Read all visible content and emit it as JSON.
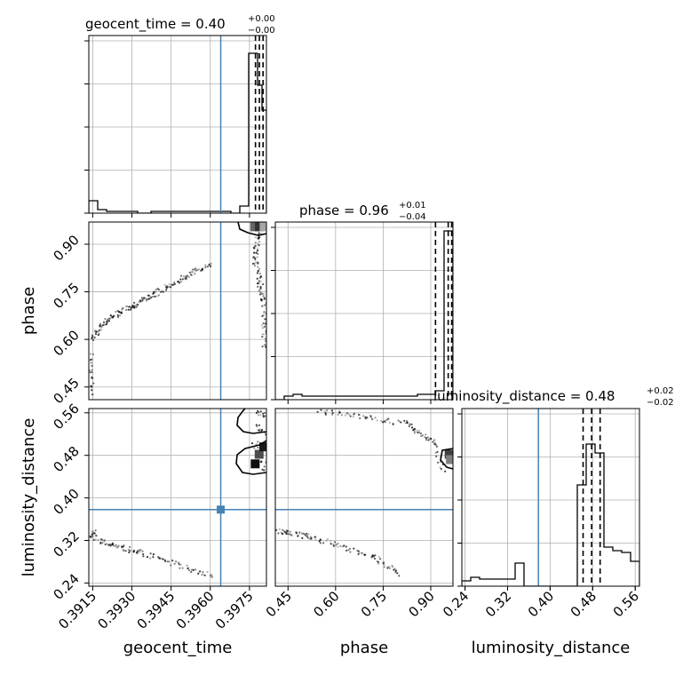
{
  "chart_data": {
    "type": "corner",
    "truth_color": "#4682b4",
    "params": [
      {
        "name": "geocent_time",
        "axis_label": "geocent_time",
        "range": [
          0.39135,
          0.39815
        ],
        "ticks": [
          "0.3915",
          "0.3930",
          "0.3945",
          "0.3960",
          "0.3975"
        ],
        "tick_values": [
          0.3915,
          0.393,
          0.3945,
          0.396,
          0.3975
        ],
        "truth": 0.3964,
        "title": "geocent_time = 0.40",
        "title_plus": "+0.00",
        "title_minus": "−0.00",
        "quantiles": [
          0.39773,
          0.39788,
          0.39802
        ]
      },
      {
        "name": "phase",
        "axis_label": "phase",
        "range": [
          0.41,
          0.97
        ],
        "ticks": [
          "0.45",
          "0.60",
          "0.75",
          "0.90"
        ],
        "tick_values": [
          0.45,
          0.6,
          0.75,
          0.9
        ],
        "truth": null,
        "title": "phase = 0.96",
        "title_plus": "+0.01",
        "title_minus": "−0.04",
        "quantiles": [
          0.915,
          0.955,
          0.966
        ]
      },
      {
        "name": "luminosity_distance",
        "axis_label": "luminosity_distance",
        "range": [
          0.234,
          0.568
        ],
        "ticks": [
          "0.24",
          "0.32",
          "0.40",
          "0.48",
          "0.56"
        ],
        "tick_values": [
          0.24,
          0.32,
          0.4,
          0.48,
          0.56
        ],
        "truth": 0.378,
        "title": "luminosity_distance = 0.48",
        "title_plus": "+0.02",
        "title_minus": "−0.02",
        "quantiles": [
          0.462,
          0.478,
          0.494
        ]
      }
    ],
    "histograms": {
      "geocent_time": {
        "edges": [
          0.39135,
          0.39152,
          0.39169,
          0.39186,
          0.39203,
          0.3922,
          0.39237,
          0.39254,
          0.39271,
          0.39288,
          0.39305,
          0.39322,
          0.39339,
          0.39356,
          0.39373,
          0.3939,
          0.39407,
          0.39424,
          0.39441,
          0.39458,
          0.39475,
          0.39492,
          0.39509,
          0.39526,
          0.39543,
          0.3956,
          0.39577,
          0.39594,
          0.39611,
          0.39628,
          0.39645,
          0.39662,
          0.39679,
          0.39696,
          0.39713,
          0.3973,
          0.39747,
          0.39764,
          0.39781,
          0.39798,
          0.39815
        ],
        "counts": [
          0.07,
          0.07,
          0.02,
          0.02,
          0.01,
          0.01,
          0.01,
          0.01,
          0.01,
          0.01,
          0.01,
          0.0,
          0.0,
          0.0,
          0.01,
          0.01,
          0.01,
          0.01,
          0.01,
          0.01,
          0.01,
          0.01,
          0.01,
          0.01,
          0.01,
          0.01,
          0.01,
          0.01,
          0.01,
          0.01,
          0.01,
          0.01,
          0.0,
          0.0,
          0.04,
          0.04,
          0.9,
          0.9,
          0.72,
          0.58
        ]
      },
      "phase": {
        "edges": [
          0.41,
          0.438,
          0.466,
          0.494,
          0.522,
          0.55,
          0.578,
          0.606,
          0.634,
          0.662,
          0.69,
          0.718,
          0.746,
          0.774,
          0.802,
          0.83,
          0.858,
          0.886,
          0.914,
          0.942,
          0.97
        ],
        "counts": [
          0.0,
          0.02,
          0.03,
          0.02,
          0.02,
          0.02,
          0.02,
          0.02,
          0.02,
          0.02,
          0.02,
          0.02,
          0.02,
          0.02,
          0.02,
          0.02,
          0.03,
          0.03,
          0.05,
          0.95
        ]
      },
      "luminosity_distance": {
        "edges": [
          0.234,
          0.2507,
          0.2674,
          0.2841,
          0.3008,
          0.3175,
          0.3342,
          0.3509,
          0.3676,
          0.3843,
          0.401,
          0.4177,
          0.4344,
          0.4511,
          0.4678,
          0.4845,
          0.5012,
          0.5179,
          0.5346,
          0.5513,
          0.568
        ],
        "counts": [
          0.03,
          0.05,
          0.04,
          0.04,
          0.04,
          0.04,
          0.13,
          0.0,
          0.0,
          0.0,
          0.0,
          0.0,
          0.0,
          0.57,
          0.8,
          0.75,
          0.22,
          0.2,
          0.19,
          0.14
        ]
      }
    },
    "scatter_bands": [
      {
        "panel": "phase_vs_geocent_time",
        "series": [
          {
            "start": [
              0.39138,
              0.52
            ],
            "end": [
              0.39148,
              0.43
            ],
            "count": 14
          },
          {
            "start": [
              0.3914,
              0.56
            ],
            "end": [
              0.39152,
              0.51
            ],
            "count": 8
          },
          {
            "start": [
              0.39145,
              0.6
            ],
            "end": [
              0.392,
              0.66
            ],
            "count": 30
          },
          {
            "start": [
              0.392,
              0.66
            ],
            "end": [
              0.3938,
              0.74
            ],
            "count": 70
          },
          {
            "start": [
              0.3938,
              0.74
            ],
            "end": [
              0.396,
              0.84
            ],
            "count": 70
          },
          {
            "start": [
              0.3979,
              0.96
            ],
            "end": [
              0.3979,
              0.93
            ],
            "count": 10
          },
          {
            "start": [
              0.39785,
              0.93
            ],
            "end": [
              0.3977,
              0.86
            ],
            "count": 25
          },
          {
            "start": [
              0.3977,
              0.86
            ],
            "end": [
              0.39805,
              0.72
            ],
            "count": 40
          },
          {
            "start": [
              0.39805,
              0.72
            ],
            "end": [
              0.3981,
              0.57
            ],
            "count": 35
          }
        ]
      },
      {
        "panel": "luminosity_distance_vs_geocent_time",
        "series": [
          {
            "start": [
              0.39136,
              0.325
            ],
            "end": [
              0.3916,
              0.335
            ],
            "count": 15
          },
          {
            "start": [
              0.3916,
              0.32
            ],
            "end": [
              0.3933,
              0.298
            ],
            "count": 45
          },
          {
            "start": [
              0.3933,
              0.298
            ],
            "end": [
              0.3961,
              0.252
            ],
            "count": 50
          },
          {
            "start": [
              0.39775,
              0.56
            ],
            "end": [
              0.3981,
              0.555
            ],
            "count": 12
          },
          {
            "start": [
              0.39775,
              0.535
            ],
            "end": [
              0.3981,
              0.52
            ],
            "count": 12
          },
          {
            "start": [
              0.3977,
              0.505
            ],
            "end": [
              0.3981,
              0.455
            ],
            "count": 20
          }
        ]
      },
      {
        "panel": "luminosity_distance_vs_phase",
        "series": [
          {
            "start": [
              0.55,
              0.564
            ],
            "end": [
              0.82,
              0.54
            ],
            "count": 50
          },
          {
            "start": [
              0.82,
              0.54
            ],
            "end": [
              0.91,
              0.505
            ],
            "count": 30
          },
          {
            "start": [
              0.91,
              0.505
            ],
            "end": [
              0.94,
              0.45
            ],
            "count": 15
          },
          {
            "start": [
              0.41,
              0.338
            ],
            "end": [
              0.53,
              0.325
            ],
            "count": 35
          },
          {
            "start": [
              0.53,
              0.325
            ],
            "end": [
              0.72,
              0.29
            ],
            "count": 40
          },
          {
            "start": [
              0.72,
              0.29
            ],
            "end": [
              0.8,
              0.258
            ],
            "count": 25
          }
        ]
      }
    ],
    "density_squares": [
      {
        "panel": "phase_vs_geocent_time",
        "points": [
          [
            0.3977,
            0.955,
            0.6
          ],
          [
            0.39788,
            0.955,
            0.8
          ],
          [
            0.39806,
            0.955,
            0.35
          ]
        ]
      },
      {
        "panel": "luminosity_distance_vs_geocent_time",
        "points": [
          [
            0.39772,
            0.464,
            0.95
          ],
          [
            0.39787,
            0.482,
            0.7
          ],
          [
            0.39805,
            0.496,
            0.9
          ]
        ]
      },
      {
        "panel": "luminosity_distance_vs_phase",
        "points": [
          [
            0.958,
            0.482,
            0.75
          ],
          [
            0.962,
            0.472,
            0.5
          ]
        ]
      }
    ],
    "truth_markers": [
      {
        "panel": "luminosity_distance_vs_geocent_time",
        "x": 0.3964,
        "y": 0.378
      }
    ]
  }
}
